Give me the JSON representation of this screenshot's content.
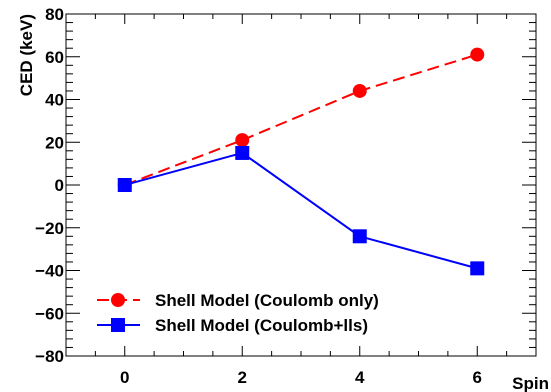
{
  "chart_data": {
    "type": "line",
    "title": "",
    "xlabel": "Spin",
    "ylabel": "CED (keV)",
    "xlim": [
      -1,
      7
    ],
    "ylim": [
      -80,
      80
    ],
    "x_ticks": [
      0,
      2,
      4,
      6
    ],
    "y_ticks": [
      -80,
      -60,
      -40,
      -20,
      0,
      20,
      40,
      60,
      80
    ],
    "x_tick_labels": [
      "0",
      "2",
      "4",
      "6"
    ],
    "y_tick_labels": [
      "−80",
      "−60",
      "−40",
      "−20",
      "0",
      "20",
      "40",
      "60",
      "80"
    ],
    "grid": false,
    "legend_position": "bottom-left",
    "series": [
      {
        "name": "Shell Model (Coulomb only)",
        "x": [
          0,
          2,
          4,
          6
        ],
        "y": [
          0,
          21,
          44,
          61
        ],
        "color": "#ff0000",
        "marker": "circle",
        "line_style": "dashed"
      },
      {
        "name": "Shell Model (Coulomb+lls)",
        "x": [
          0,
          2,
          4,
          6
        ],
        "y": [
          0,
          15,
          -24,
          -39
        ],
        "color": "#0000ff",
        "marker": "square",
        "line_style": "solid"
      }
    ]
  }
}
